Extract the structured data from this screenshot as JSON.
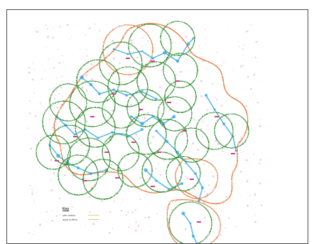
{
  "map": {
    "title": "",
    "colors": {
      "coverage_circle": "#2e8b2e",
      "boundary": "#e07a3a",
      "route": "#2aa3e0",
      "point": "#d0408a",
      "background_dots": "#f2c9e6"
    }
  },
  "legend": {
    "title": "Key",
    "items": [
      {
        "label": "site radius",
        "color": "#e6d58a"
      },
      {
        "label": "area outline",
        "color": "#e6c08a"
      }
    ]
  }
}
